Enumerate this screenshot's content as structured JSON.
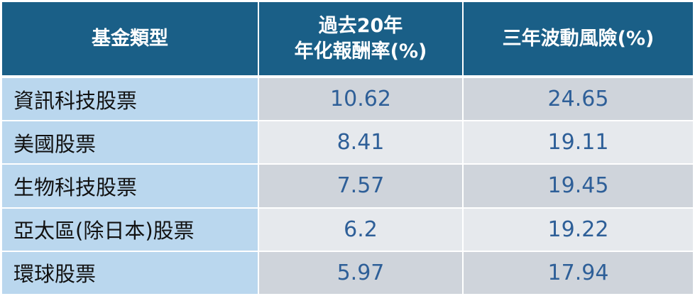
{
  "chart_data": {
    "type": "table",
    "columns": [
      "基金類型",
      "過去20年年化報酬率(%)",
      "三年波動風險(%)"
    ],
    "header": {
      "col1": "基金類型",
      "col2_line1": "過去20年",
      "col2_line2": "年化報酬率(%)",
      "col3": "三年波動風險(%)"
    },
    "rows": [
      {
        "type": "資訊科技股票",
        "return_20y": "10.62",
        "volatility_3y": "24.65"
      },
      {
        "type": "美國股票",
        "return_20y": "8.41",
        "volatility_3y": "19.11"
      },
      {
        "type": "生物科技股票",
        "return_20y": "7.57",
        "volatility_3y": "19.45"
      },
      {
        "type": "亞太區(除日本)股票",
        "return_20y": "6.2",
        "volatility_3y": "19.22"
      },
      {
        "type": "環球股票",
        "return_20y": "5.97",
        "volatility_3y": "17.94"
      }
    ]
  },
  "colors": {
    "header_bg": "#1a5f87",
    "name_col_bg": "#bad7ee",
    "row_odd_bg": "#cfd4db",
    "row_even_bg": "#e6e9ed",
    "number_text": "#2e5f98"
  }
}
